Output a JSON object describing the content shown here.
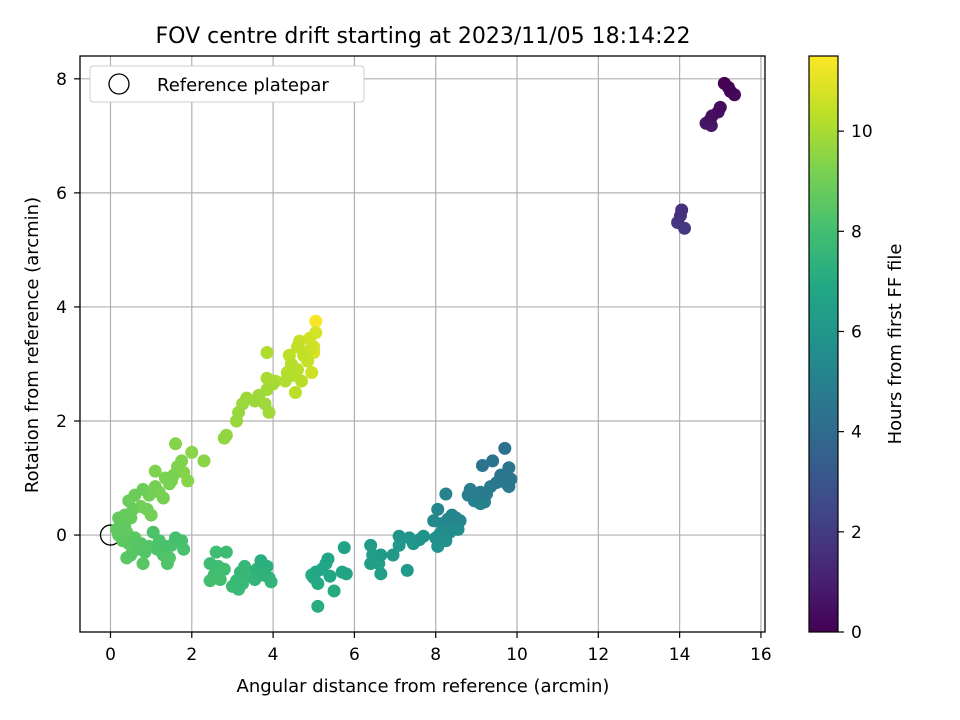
{
  "chart_data": {
    "type": "scatter",
    "title": "FOV centre drift starting at 2023/11/05 18:14:22",
    "xlabel": "Angular distance from reference (arcmin)",
    "ylabel": "Rotation from reference (arcmin)",
    "xlim": [
      -0.75,
      16.1
    ],
    "ylim": [
      -1.7,
      8.4
    ],
    "xticks": [
      "0",
      "2",
      "4",
      "6",
      "8",
      "10",
      "12",
      "14",
      "16"
    ],
    "yticks": [
      "0",
      "2",
      "4",
      "6",
      "8"
    ],
    "grid": true,
    "legend": {
      "position": "top-left",
      "entries": [
        "Reference platepar"
      ]
    },
    "reference_point": {
      "x": 0,
      "y": 0
    },
    "colorbar": {
      "label": "Hours from first FF file",
      "range": [
        0,
        11.5
      ],
      "ticks": [
        "0",
        "2",
        "4",
        "6",
        "8",
        "10"
      ],
      "colormap": "viridis"
    },
    "series": [
      {
        "points": [
          {
            "x": 15.1,
            "y": 7.92,
            "c": 0.05
          },
          {
            "x": 15.2,
            "y": 7.85,
            "c": 0.12
          },
          {
            "x": 15.25,
            "y": 7.78,
            "c": 0.2
          },
          {
            "x": 15.35,
            "y": 7.72,
            "c": 0.28
          },
          {
            "x": 15.0,
            "y": 7.5,
            "c": 0.35
          },
          {
            "x": 14.95,
            "y": 7.42,
            "c": 0.42
          },
          {
            "x": 14.8,
            "y": 7.35,
            "c": 0.5
          },
          {
            "x": 14.75,
            "y": 7.28,
            "c": 0.58
          },
          {
            "x": 14.65,
            "y": 7.22,
            "c": 0.65
          },
          {
            "x": 14.78,
            "y": 7.18,
            "c": 0.72
          },
          {
            "x": 14.05,
            "y": 5.7,
            "c": 1.6
          },
          {
            "x": 14.02,
            "y": 5.6,
            "c": 1.7
          },
          {
            "x": 13.95,
            "y": 5.48,
            "c": 1.8
          },
          {
            "x": 14.12,
            "y": 5.38,
            "c": 1.9
          },
          {
            "x": 9.7,
            "y": 1.52,
            "c": 4.3
          },
          {
            "x": 9.4,
            "y": 1.3,
            "c": 4.35
          },
          {
            "x": 9.15,
            "y": 1.22,
            "c": 4.4
          },
          {
            "x": 9.8,
            "y": 1.18,
            "c": 4.45
          },
          {
            "x": 9.6,
            "y": 1.05,
            "c": 4.5
          },
          {
            "x": 9.85,
            "y": 0.98,
            "c": 4.55
          },
          {
            "x": 9.5,
            "y": 0.92,
            "c": 4.6
          },
          {
            "x": 9.75,
            "y": 0.9,
            "c": 4.62
          },
          {
            "x": 9.8,
            "y": 0.85,
            "c": 4.65
          },
          {
            "x": 9.35,
            "y": 0.85,
            "c": 4.7
          },
          {
            "x": 8.85,
            "y": 0.8,
            "c": 4.75
          },
          {
            "x": 9.1,
            "y": 0.75,
            "c": 4.8
          },
          {
            "x": 9.25,
            "y": 0.72,
            "c": 4.85
          },
          {
            "x": 8.8,
            "y": 0.7,
            "c": 4.88
          },
          {
            "x": 9.0,
            "y": 0.68,
            "c": 4.9
          },
          {
            "x": 8.95,
            "y": 0.6,
            "c": 4.95
          },
          {
            "x": 9.2,
            "y": 0.58,
            "c": 5.0
          },
          {
            "x": 9.1,
            "y": 0.55,
            "c": 5.05
          },
          {
            "x": 8.25,
            "y": 0.72,
            "c": 5.1
          },
          {
            "x": 8.05,
            "y": 0.45,
            "c": 5.15
          },
          {
            "x": 8.4,
            "y": 0.35,
            "c": 5.2
          },
          {
            "x": 8.5,
            "y": 0.3,
            "c": 5.25
          },
          {
            "x": 8.3,
            "y": 0.28,
            "c": 5.3
          },
          {
            "x": 8.6,
            "y": 0.25,
            "c": 5.35
          },
          {
            "x": 7.95,
            "y": 0.25,
            "c": 5.4
          },
          {
            "x": 8.15,
            "y": 0.2,
            "c": 5.45
          },
          {
            "x": 8.45,
            "y": 0.15,
            "c": 5.5
          },
          {
            "x": 8.55,
            "y": 0.1,
            "c": 5.55
          },
          {
            "x": 8.35,
            "y": 0.05,
            "c": 5.6
          },
          {
            "x": 8.1,
            "y": 0.02,
            "c": 5.65
          },
          {
            "x": 8.0,
            "y": -0.05,
            "c": 5.7
          },
          {
            "x": 8.25,
            "y": -0.1,
            "c": 5.75
          },
          {
            "x": 8.05,
            "y": -0.2,
            "c": 5.8
          },
          {
            "x": 7.7,
            "y": -0.02,
            "c": 5.85
          },
          {
            "x": 7.6,
            "y": -0.08,
            "c": 5.9
          },
          {
            "x": 7.1,
            "y": -0.02,
            "c": 5.95
          },
          {
            "x": 7.35,
            "y": -0.05,
            "c": 6.0
          },
          {
            "x": 7.45,
            "y": -0.15,
            "c": 6.05
          },
          {
            "x": 7.1,
            "y": -0.18,
            "c": 6.1
          },
          {
            "x": 6.95,
            "y": -0.35,
            "c": 6.15
          },
          {
            "x": 7.3,
            "y": -0.62,
            "c": 6.2
          },
          {
            "x": 6.65,
            "y": -0.35,
            "c": 6.25
          },
          {
            "x": 6.4,
            "y": -0.18,
            "c": 6.3
          },
          {
            "x": 6.45,
            "y": -0.35,
            "c": 6.35
          },
          {
            "x": 6.4,
            "y": -0.5,
            "c": 6.4
          },
          {
            "x": 6.6,
            "y": -0.5,
            "c": 6.45
          },
          {
            "x": 6.65,
            "y": -0.68,
            "c": 6.5
          },
          {
            "x": 5.75,
            "y": -0.22,
            "c": 6.6
          },
          {
            "x": 5.7,
            "y": -0.65,
            "c": 6.65
          },
          {
            "x": 5.8,
            "y": -0.68,
            "c": 6.7
          },
          {
            "x": 5.35,
            "y": -0.42,
            "c": 6.75
          },
          {
            "x": 5.3,
            "y": -0.5,
            "c": 6.8
          },
          {
            "x": 5.2,
            "y": -0.6,
            "c": 6.82
          },
          {
            "x": 5.4,
            "y": -0.72,
            "c": 6.85
          },
          {
            "x": 5.05,
            "y": -0.65,
            "c": 6.9
          },
          {
            "x": 5.0,
            "y": -0.75,
            "c": 6.95
          },
          {
            "x": 5.1,
            "y": -0.85,
            "c": 7.0
          },
          {
            "x": 5.5,
            "y": -0.98,
            "c": 7.05
          },
          {
            "x": 5.1,
            "y": -1.25,
            "c": 7.1
          },
          {
            "x": 4.95,
            "y": -0.7,
            "c": 7.15
          },
          {
            "x": 3.7,
            "y": -0.45,
            "c": 7.25
          },
          {
            "x": 3.85,
            "y": -0.55,
            "c": 7.3
          },
          {
            "x": 3.6,
            "y": -0.6,
            "c": 7.35
          },
          {
            "x": 3.75,
            "y": -0.7,
            "c": 7.4
          },
          {
            "x": 3.9,
            "y": -0.75,
            "c": 7.45
          },
          {
            "x": 3.55,
            "y": -0.78,
            "c": 7.5
          },
          {
            "x": 3.95,
            "y": -0.82,
            "c": 7.55
          },
          {
            "x": 3.3,
            "y": -0.55,
            "c": 7.6
          },
          {
            "x": 3.2,
            "y": -0.65,
            "c": 7.62
          },
          {
            "x": 3.4,
            "y": -0.7,
            "c": 7.65
          },
          {
            "x": 3.1,
            "y": -0.8,
            "c": 7.7
          },
          {
            "x": 3.25,
            "y": -0.85,
            "c": 7.72
          },
          {
            "x": 3.0,
            "y": -0.9,
            "c": 7.75
          },
          {
            "x": 3.15,
            "y": -0.95,
            "c": 7.8
          },
          {
            "x": 2.85,
            "y": -0.3,
            "c": 7.85
          },
          {
            "x": 2.6,
            "y": -0.3,
            "c": 7.9
          },
          {
            "x": 2.45,
            "y": -0.5,
            "c": 7.92
          },
          {
            "x": 2.65,
            "y": -0.55,
            "c": 7.95
          },
          {
            "x": 2.8,
            "y": -0.6,
            "c": 7.98
          },
          {
            "x": 2.55,
            "y": -0.7,
            "c": 8.0
          },
          {
            "x": 2.7,
            "y": -0.78,
            "c": 8.02
          },
          {
            "x": 2.45,
            "y": -0.8,
            "c": 8.05
          },
          {
            "x": 1.6,
            "y": -0.05,
            "c": 8.1
          },
          {
            "x": 1.75,
            "y": -0.1,
            "c": 8.12
          },
          {
            "x": 1.5,
            "y": -0.18,
            "c": 8.15
          },
          {
            "x": 1.8,
            "y": -0.25,
            "c": 8.18
          },
          {
            "x": 1.35,
            "y": -0.2,
            "c": 8.2
          },
          {
            "x": 1.2,
            "y": -0.1,
            "c": 8.22
          },
          {
            "x": 1.05,
            "y": 0.05,
            "c": 8.25
          },
          {
            "x": 1.15,
            "y": -0.25,
            "c": 8.28
          },
          {
            "x": 1.3,
            "y": -0.35,
            "c": 8.3
          },
          {
            "x": 1.45,
            "y": -0.4,
            "c": 8.32
          },
          {
            "x": 1.4,
            "y": -0.5,
            "c": 8.35
          },
          {
            "x": 0.95,
            "y": -0.2,
            "c": 8.38
          },
          {
            "x": 0.85,
            "y": -0.3,
            "c": 8.4
          },
          {
            "x": 0.75,
            "y": -0.15,
            "c": 8.42
          },
          {
            "x": 0.65,
            "y": -0.25,
            "c": 8.45
          },
          {
            "x": 0.8,
            "y": -0.5,
            "c": 8.48
          },
          {
            "x": 0.5,
            "y": -0.35,
            "c": 8.5
          },
          {
            "x": 0.4,
            "y": -0.4,
            "c": 8.52
          },
          {
            "x": 0.6,
            "y": -0.05,
            "c": 8.55
          },
          {
            "x": 0.45,
            "y": -0.15,
            "c": 8.58
          },
          {
            "x": 0.3,
            "y": -0.1,
            "c": 8.6
          },
          {
            "x": 0.2,
            "y": 0.0,
            "c": 8.62
          },
          {
            "x": 0.15,
            "y": 0.1,
            "c": 8.65
          },
          {
            "x": 0.25,
            "y": 0.2,
            "c": 8.68
          },
          {
            "x": 0.35,
            "y": 0.15,
            "c": 8.7
          },
          {
            "x": 0.4,
            "y": 0.05,
            "c": 8.72
          },
          {
            "x": 0.2,
            "y": 0.3,
            "c": 8.75
          },
          {
            "x": 0.35,
            "y": 0.35,
            "c": 8.78
          },
          {
            "x": 0.5,
            "y": 0.3,
            "c": 8.8
          },
          {
            "x": 0.55,
            "y": 0.45,
            "c": 8.85
          },
          {
            "x": 0.45,
            "y": 0.6,
            "c": 8.88
          },
          {
            "x": 0.6,
            "y": 0.7,
            "c": 8.9
          },
          {
            "x": 0.8,
            "y": 0.8,
            "c": 8.95
          },
          {
            "x": 0.95,
            "y": 0.7,
            "c": 9.0
          },
          {
            "x": 0.9,
            "y": 0.45,
            "c": 9.02
          },
          {
            "x": 0.75,
            "y": 0.5,
            "c": 9.05
          },
          {
            "x": 1.0,
            "y": 0.35,
            "c": 9.08
          },
          {
            "x": 1.1,
            "y": 0.85,
            "c": 9.1
          },
          {
            "x": 1.2,
            "y": 0.75,
            "c": 9.12
          },
          {
            "x": 1.3,
            "y": 0.65,
            "c": 9.15
          },
          {
            "x": 1.45,
            "y": 0.9,
            "c": 9.18
          },
          {
            "x": 1.55,
            "y": 1.05,
            "c": 9.2
          },
          {
            "x": 1.35,
            "y": 1.0,
            "c": 9.22
          },
          {
            "x": 1.1,
            "y": 1.12,
            "c": 9.25
          },
          {
            "x": 1.65,
            "y": 1.2,
            "c": 9.28
          },
          {
            "x": 1.75,
            "y": 1.3,
            "c": 9.3
          },
          {
            "x": 1.6,
            "y": 1.6,
            "c": 9.35
          },
          {
            "x": 1.5,
            "y": 0.95,
            "c": 9.38
          },
          {
            "x": 1.8,
            "y": 1.1,
            "c": 9.4
          },
          {
            "x": 1.9,
            "y": 0.95,
            "c": 9.42
          },
          {
            "x": 2.0,
            "y": 1.45,
            "c": 9.45
          },
          {
            "x": 2.3,
            "y": 1.3,
            "c": 9.48
          },
          {
            "x": 2.8,
            "y": 1.7,
            "c": 9.6
          },
          {
            "x": 2.85,
            "y": 1.75,
            "c": 9.62
          },
          {
            "x": 3.1,
            "y": 2.0,
            "c": 9.7
          },
          {
            "x": 3.15,
            "y": 2.15,
            "c": 9.72
          },
          {
            "x": 3.25,
            "y": 2.3,
            "c": 9.75
          },
          {
            "x": 3.35,
            "y": 2.4,
            "c": 9.78
          },
          {
            "x": 3.55,
            "y": 2.35,
            "c": 9.8
          },
          {
            "x": 3.65,
            "y": 2.45,
            "c": 9.82
          },
          {
            "x": 3.8,
            "y": 2.3,
            "c": 9.85
          },
          {
            "x": 3.9,
            "y": 2.15,
            "c": 9.88
          },
          {
            "x": 3.85,
            "y": 2.55,
            "c": 9.9
          },
          {
            "x": 4.0,
            "y": 2.65,
            "c": 9.95
          },
          {
            "x": 3.85,
            "y": 2.75,
            "c": 10.0
          },
          {
            "x": 4.05,
            "y": 2.7,
            "c": 10.05
          },
          {
            "x": 3.85,
            "y": 3.2,
            "c": 10.1
          },
          {
            "x": 4.3,
            "y": 2.7,
            "c": 10.15
          },
          {
            "x": 4.35,
            "y": 2.85,
            "c": 10.2
          },
          {
            "x": 4.5,
            "y": 2.8,
            "c": 10.22
          },
          {
            "x": 4.45,
            "y": 3.0,
            "c": 10.25
          },
          {
            "x": 4.6,
            "y": 2.9,
            "c": 10.28
          },
          {
            "x": 4.7,
            "y": 2.7,
            "c": 10.3
          },
          {
            "x": 4.55,
            "y": 2.5,
            "c": 10.32
          },
          {
            "x": 4.4,
            "y": 3.15,
            "c": 10.35
          },
          {
            "x": 4.6,
            "y": 3.3,
            "c": 10.4
          },
          {
            "x": 4.75,
            "y": 3.15,
            "c": 10.45
          },
          {
            "x": 4.85,
            "y": 3.05,
            "c": 10.5
          },
          {
            "x": 4.65,
            "y": 3.4,
            "c": 10.55
          },
          {
            "x": 4.9,
            "y": 3.25,
            "c": 10.6
          },
          {
            "x": 4.95,
            "y": 2.85,
            "c": 10.65
          },
          {
            "x": 4.9,
            "y": 3.45,
            "c": 10.7
          },
          {
            "x": 5.0,
            "y": 3.3,
            "c": 10.75
          },
          {
            "x": 5.05,
            "y": 3.55,
            "c": 10.8
          },
          {
            "x": 5.0,
            "y": 3.2,
            "c": 10.9
          },
          {
            "x": 5.05,
            "y": 3.75,
            "c": 11.4
          }
        ]
      }
    ]
  }
}
